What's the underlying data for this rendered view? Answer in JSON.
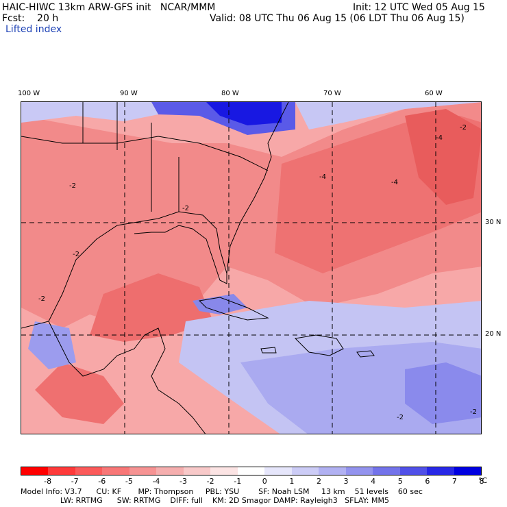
{
  "header": {
    "model_line": "HAIC-HIWC 13km ARW-GFS init   NCAR/MMM",
    "init_line": "Init: 12 UTC Wed 05 Aug 15",
    "fcst_line": "Fcst:    20 h",
    "valid_line": "Valid: 08 UTC Thu 06 Aug 15 (06 LDT Thu 06 Aug 15)",
    "field_name": "Lifted index"
  },
  "map": {
    "longitude_labels": [
      "100 W",
      "90 W",
      "80 W",
      "70 W",
      "60 W"
    ],
    "latitude_labels": [
      "30 N",
      "20 N"
    ],
    "contour_labels": [
      "-2",
      "-2",
      "-2",
      "-2",
      "-2",
      "-4",
      "-4",
      "-4",
      "-2",
      "-2"
    ]
  },
  "colorbar": {
    "labels": [
      "-8",
      "-7",
      "-6",
      "-5",
      "-4",
      "-3",
      "-2",
      "-1",
      "0",
      "1",
      "2",
      "3",
      "4",
      "5",
      "6",
      "7",
      "8"
    ],
    "unit": "°C",
    "colors": [
      "#ff0000",
      "#fe3a3a",
      "#fb5a5a",
      "#f87777",
      "#f69393",
      "#f5aeae",
      "#f8c9c9",
      "#fce4e4",
      "#ffffff",
      "#e6e6fb",
      "#ccccf6",
      "#b1b1f2",
      "#9393ee",
      "#7373ea",
      "#5050e8",
      "#2828e6",
      "#0000e0"
    ]
  },
  "footer": {
    "line1": "Model Info: V3.7      CU: KF       MP: Thompson     PBL: YSU        SF: Noah LSM     13 km    51 levels    60 sec",
    "line2": "LW: RRTMG      SW: RRTMG    DIFF: full    KM: 2D Smagor DAMP: Rayleigh3   SFLAY: MM5"
  }
}
